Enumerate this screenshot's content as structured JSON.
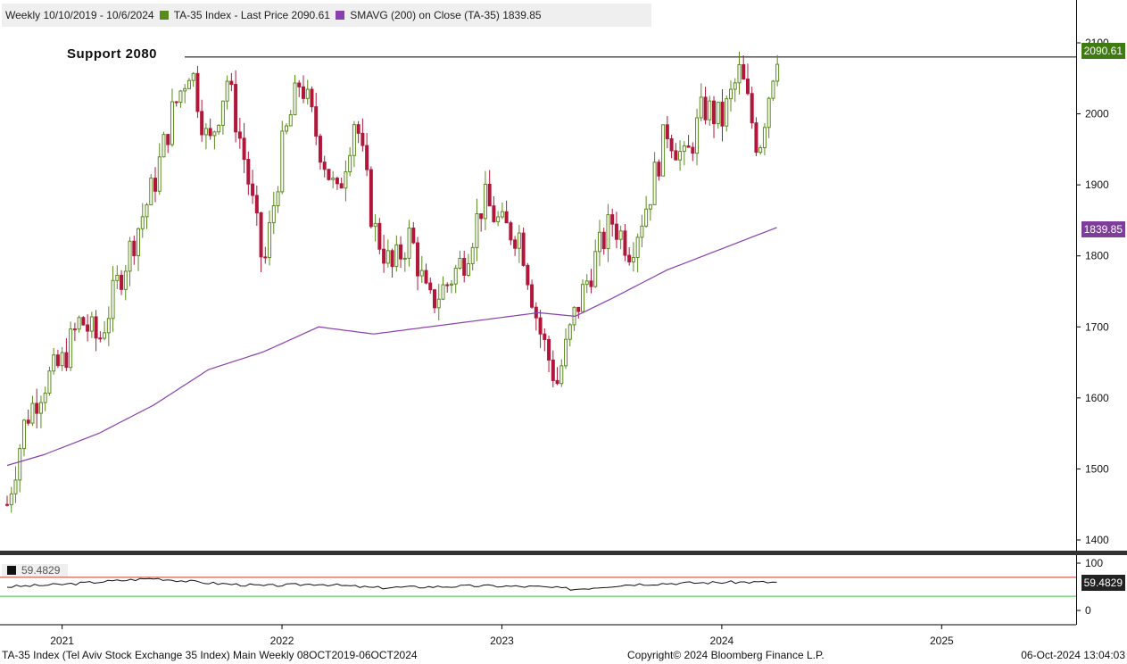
{
  "header": {
    "range_label": "Weekly 10/10/2019 - 10/6/2024",
    "series1_label": "TA-35 Index - Last Price 2090.61",
    "series2_label": "SMAVG (200)  on Close (TA-35) 1839.85"
  },
  "annotation": {
    "support_label": "Support 2080"
  },
  "rsi": {
    "legend_value": "59.4829",
    "tag_value": "59.4829",
    "upper_line": 70,
    "lower_line": 30,
    "axis_ticks": [
      "100",
      "0"
    ]
  },
  "price_tags": {
    "last": "2090.61",
    "sma": "1839.85"
  },
  "colors": {
    "up": "#5a8a1e",
    "down": "#b0173a",
    "sma": "#8a3fae",
    "last_tag": "#3f7a12",
    "sma_tag": "#7e3c9b"
  },
  "footer": {
    "left": "TA-35 Index (Tel Aviv Stock Exchange 35 Index) Main  Weekly 08OCT2019-06OCT2024",
    "center": "Copyright© 2024 Bloomberg Finance L.P.",
    "right": "06-Oct-2024 13:04:03"
  },
  "chart_data": {
    "type": "candlestick",
    "y_ticks": [
      "1400",
      "1500",
      "1600",
      "1700",
      "1800",
      "1900",
      "2000",
      "2100"
    ],
    "x_labels": [
      "2021",
      "2022",
      "2023",
      "2024",
      "2025"
    ],
    "ylim": [
      1380,
      2150
    ],
    "support_level": 2080,
    "last_price": 2090.61,
    "sma_last": 1839.85,
    "sma_path": [
      [
        "2020-10",
        1505
      ],
      [
        "2020-12",
        1520
      ],
      [
        "2021-03",
        1550
      ],
      [
        "2021-06",
        1590
      ],
      [
        "2021-09",
        1640
      ],
      [
        "2021-12",
        1665
      ],
      [
        "2022-03",
        1700
      ],
      [
        "2022-06",
        1690
      ],
      [
        "2022-09",
        1700
      ],
      [
        "2022-12",
        1710
      ],
      [
        "2023-03",
        1720
      ],
      [
        "2023-05",
        1715
      ],
      [
        "2023-07",
        1740
      ],
      [
        "2023-10",
        1780
      ],
      [
        "2024-01",
        1810
      ],
      [
        "2024-04",
        1840
      ]
    ],
    "price_path": [
      [
        "2020-10",
        1450
      ],
      [
        "2020-11",
        1570
      ],
      [
        "2020-12",
        1620
      ],
      [
        "2021-01",
        1650
      ],
      [
        "2021-02",
        1710
      ],
      [
        "2021-03",
        1680
      ],
      [
        "2021-04",
        1760
      ],
      [
        "2021-05",
        1830
      ],
      [
        "2021-06",
        1900
      ],
      [
        "2021-07",
        2000
      ],
      [
        "2021-08",
        2070
      ],
      [
        "2021-09",
        1950
      ],
      [
        "2021-10",
        2050
      ],
      [
        "2021-11",
        1930
      ],
      [
        "2021-12",
        1780
      ],
      [
        "2022-01",
        1950
      ],
      [
        "2022-02",
        2050
      ],
      [
        "2022-03",
        1960
      ],
      [
        "2022-04",
        1880
      ],
      [
        "2022-05",
        2000
      ],
      [
        "2022-06",
        1840
      ],
      [
        "2022-07",
        1780
      ],
      [
        "2022-08",
        1830
      ],
      [
        "2022-09",
        1730
      ],
      [
        "2022-10",
        1760
      ],
      [
        "2022-11",
        1800
      ],
      [
        "2022-12",
        1880
      ],
      [
        "2023-01",
        1840
      ],
      [
        "2023-02",
        1830
      ],
      [
        "2023-03",
        1700
      ],
      [
        "2023-04",
        1620
      ],
      [
        "2023-05",
        1720
      ],
      [
        "2023-06",
        1790
      ],
      [
        "2023-07",
        1850
      ],
      [
        "2023-08",
        1810
      ],
      [
        "2023-09",
        1880
      ],
      [
        "2023-10",
        1980
      ],
      [
        "2023-11",
        1930
      ],
      [
        "2023-12",
        2010
      ],
      [
        "2024-01",
        1990
      ],
      [
        "2024-02",
        2060
      ],
      [
        "2024-03",
        1950
      ],
      [
        "2024-04",
        2090
      ]
    ],
    "rsi_path": [
      [
        "2020-10",
        50
      ],
      [
        "2021-01",
        55
      ],
      [
        "2021-06",
        68
      ],
      [
        "2021-09",
        58
      ],
      [
        "2021-12",
        52
      ],
      [
        "2022-03",
        56
      ],
      [
        "2022-06",
        48
      ],
      [
        "2022-09",
        50
      ],
      [
        "2022-12",
        52
      ],
      [
        "2023-03",
        50
      ],
      [
        "2023-05",
        45
      ],
      [
        "2023-08",
        55
      ],
      [
        "2023-11",
        58
      ],
      [
        "2024-02",
        60
      ],
      [
        "2024-04",
        59.48
      ]
    ]
  }
}
